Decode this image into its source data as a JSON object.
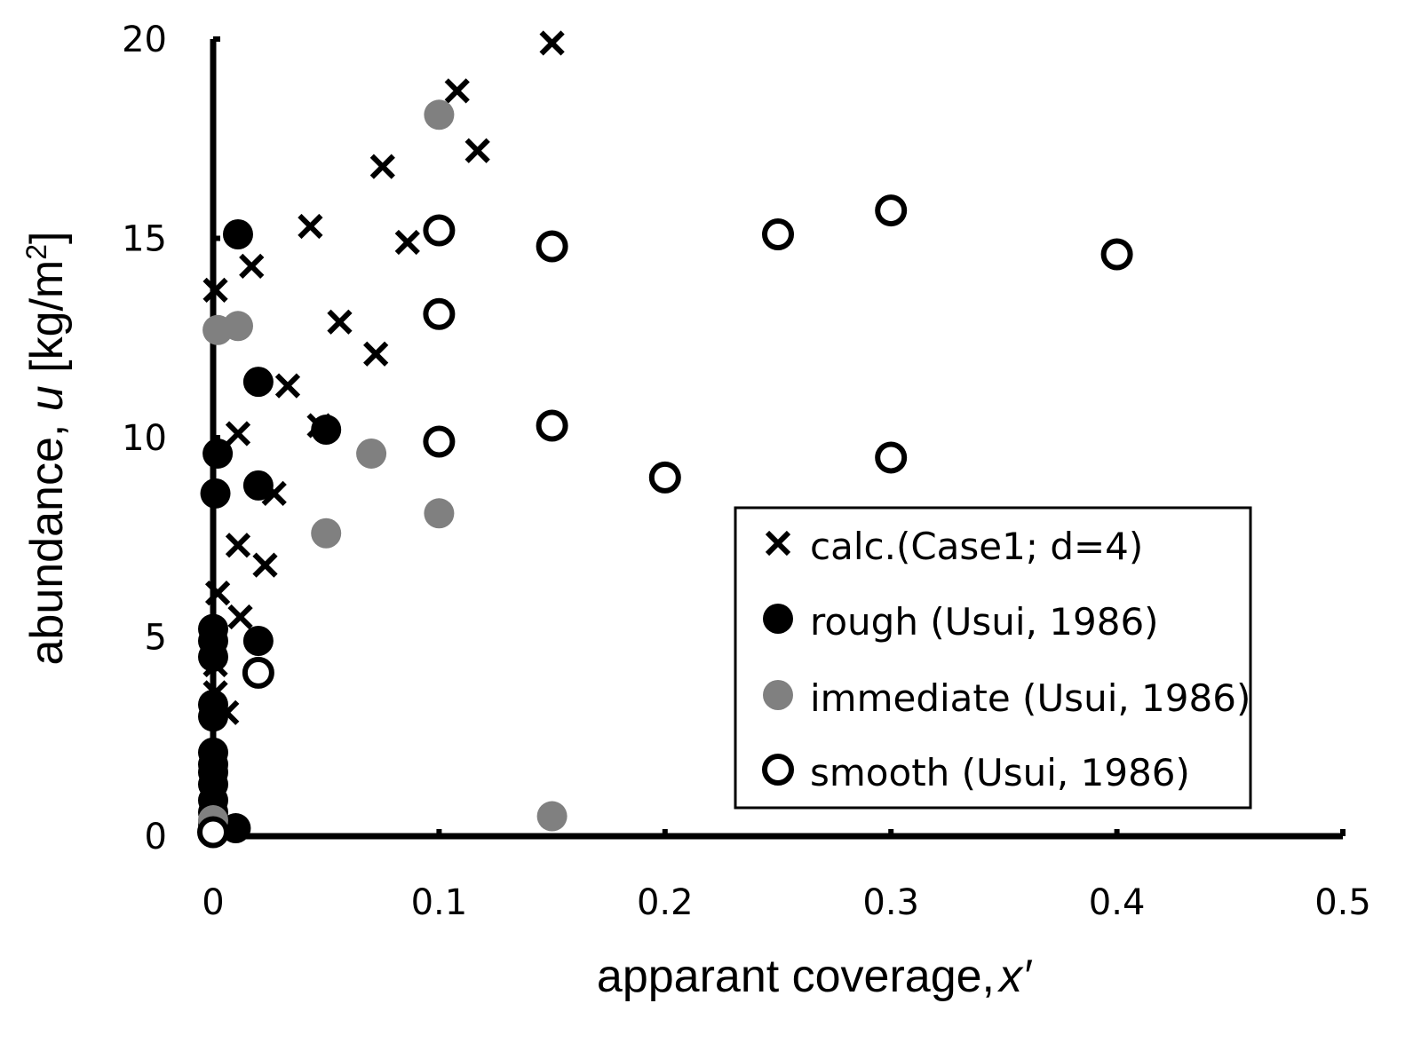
{
  "chart_data": {
    "type": "scatter",
    "title": "",
    "xlabel": "apparant coverage, ",
    "xlabel_var": "x′",
    "ylabel": "abundance, ",
    "ylabel_var": "u",
    "ylabel_unit": " [kg/m",
    "ylabel_unit_sup": "2",
    "ylabel_unit_close": "]",
    "xlim": [
      0,
      0.5
    ],
    "ylim": [
      0,
      20
    ],
    "xticks": [
      0,
      0.1,
      0.2,
      0.3,
      0.4,
      0.5
    ],
    "xtick_labels": [
      "0",
      "0.1",
      "0.2",
      "0.3",
      "0.4",
      "0.5"
    ],
    "yticks": [
      0,
      5,
      10,
      15,
      20
    ],
    "ytick_labels": [
      "0",
      "5",
      "10",
      "15",
      "20"
    ],
    "grid": false,
    "legend_position": "bottom-right",
    "series": [
      {
        "name": "calc.(Case1; d=4)",
        "marker": "x",
        "color": "#000000",
        "points": [
          [
            0.15,
            19.9
          ],
          [
            0.108,
            18.7
          ],
          [
            0.117,
            17.2
          ],
          [
            0.075,
            16.8
          ],
          [
            0.043,
            15.3
          ],
          [
            0.086,
            14.9
          ],
          [
            0.017,
            14.3
          ],
          [
            0.001,
            13.7
          ],
          [
            0.056,
            12.9
          ],
          [
            0.072,
            12.1
          ],
          [
            0.033,
            11.3
          ],
          [
            0.047,
            10.3
          ],
          [
            0.011,
            10.1
          ],
          [
            0.027,
            8.6
          ],
          [
            0.011,
            7.3
          ],
          [
            0.023,
            6.8
          ],
          [
            0.002,
            6.1
          ],
          [
            0.012,
            5.5
          ],
          [
            0.001,
            4.3
          ],
          [
            0.001,
            3.6
          ],
          [
            0.006,
            3.1
          ]
        ]
      },
      {
        "name": "rough (Usui, 1986)",
        "marker": "filled-circle",
        "color": "#000000",
        "points": [
          [
            0.011,
            15.1
          ],
          [
            0.02,
            11.4
          ],
          [
            0.05,
            10.2
          ],
          [
            0.002,
            9.6
          ],
          [
            0.02,
            8.8
          ],
          [
            0.001,
            8.6
          ],
          [
            0.0,
            5.2
          ],
          [
            0.0,
            4.9
          ],
          [
            0.02,
            4.9
          ],
          [
            0.0,
            4.5
          ],
          [
            0.0,
            3.3
          ],
          [
            0.0,
            3.0
          ],
          [
            0.0,
            2.1
          ],
          [
            0.0,
            1.8
          ],
          [
            0.0,
            1.6
          ],
          [
            0.0,
            1.3
          ],
          [
            0.0,
            0.9
          ],
          [
            0.0,
            0.6
          ],
          [
            0.0,
            0.3
          ],
          [
            0.01,
            0.2
          ]
        ]
      },
      {
        "name": "immediate (Usui, 1986)",
        "marker": "filled-circle",
        "color": "#808080",
        "points": [
          [
            0.1,
            18.1
          ],
          [
            0.002,
            12.7
          ],
          [
            0.011,
            12.8
          ],
          [
            0.07,
            9.6
          ],
          [
            0.1,
            8.1
          ],
          [
            0.05,
            7.6
          ],
          [
            0.15,
            0.5
          ],
          [
            0.0,
            0.4
          ]
        ]
      },
      {
        "name": "smooth (Usui, 1986)",
        "marker": "open-circle",
        "color": "#000000",
        "points": [
          [
            0.3,
            15.7
          ],
          [
            0.1,
            15.2
          ],
          [
            0.25,
            15.1
          ],
          [
            0.15,
            14.8
          ],
          [
            0.4,
            14.6
          ],
          [
            0.1,
            13.1
          ],
          [
            0.15,
            10.3
          ],
          [
            0.1,
            9.9
          ],
          [
            0.3,
            9.5
          ],
          [
            0.2,
            9.0
          ],
          [
            0.02,
            4.1
          ],
          [
            0.0,
            0.1
          ]
        ]
      }
    ]
  }
}
